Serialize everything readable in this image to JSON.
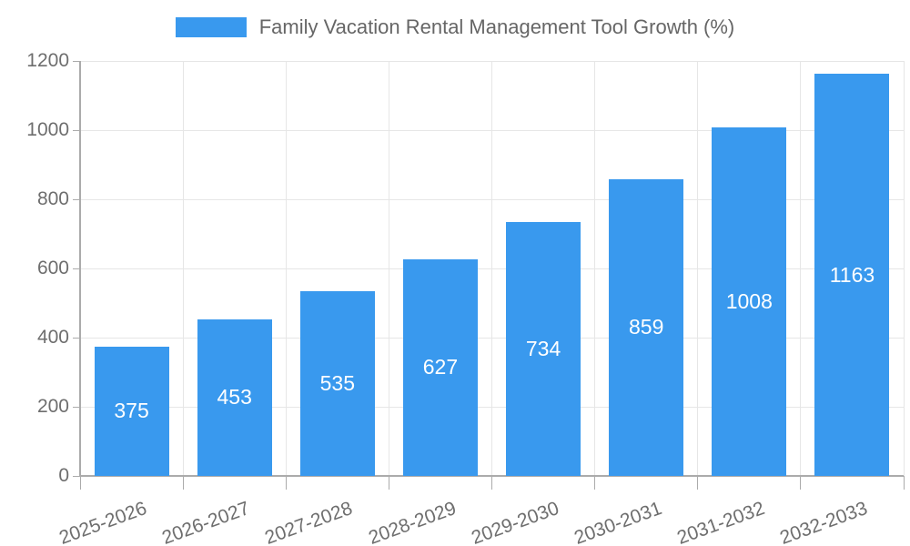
{
  "chart_data": {
    "type": "bar",
    "title": "Family Vacation Rental Management Tool Growth (%)",
    "legend_label": "Family Vacation Rental Management Tool Growth (%)",
    "legend_position": "top",
    "categories": [
      "2025-2026",
      "2026-2027",
      "2027-2028",
      "2028-2029",
      "2029-2030",
      "2030-2031",
      "2031-2032",
      "2032-2033"
    ],
    "values": [
      375,
      453,
      535,
      627,
      734,
      859,
      1008,
      1163
    ],
    "bar_value_labels": [
      "375",
      "453",
      "535",
      "627",
      "734",
      "859",
      "1008",
      "1163"
    ],
    "xlabel": "",
    "ylabel": "",
    "ylim": [
      0,
      1200
    ],
    "y_ticks": [
      0,
      200,
      400,
      600,
      800,
      1000,
      1200
    ],
    "grid": true,
    "colors": {
      "bar": "#3999EE",
      "bar_label": "#FFFFFF",
      "grid_line": "#E6E6E6",
      "axis_line": "#ABABAB",
      "tick_label": "#6E6E6E",
      "legend_text": "#666666"
    }
  }
}
